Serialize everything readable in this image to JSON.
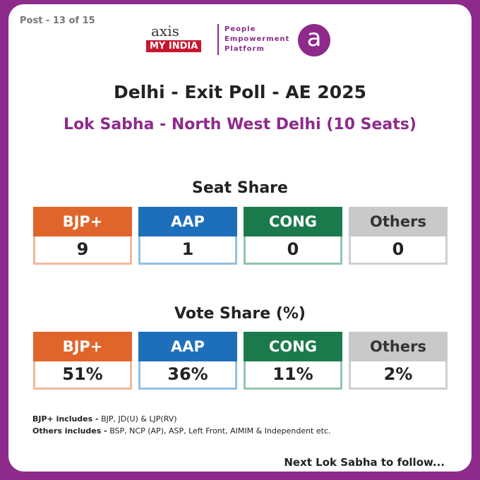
{
  "header": {
    "post": "Post - 13 of 15",
    "logo_top": "axis",
    "logo_bottom": "MY INDIA",
    "tagline": [
      "People",
      "Empowerment",
      "Platform"
    ],
    "badge": "a"
  },
  "title": "Delhi - Exit Poll - AE 2025",
  "subtitle": "Lok Sabha - North West Delhi (10 Seats)",
  "seat_share": {
    "heading": "Seat Share",
    "items": [
      {
        "party": "BJP+",
        "value": 9
      },
      {
        "party": "AAP",
        "value": 1
      },
      {
        "party": "CONG",
        "value": 0
      },
      {
        "party": "Others",
        "value": 0
      }
    ]
  },
  "vote_share": {
    "heading": "Vote Share (%)",
    "items": [
      {
        "party": "BJP+",
        "value": "51%"
      },
      {
        "party": "AAP",
        "value": "36%"
      },
      {
        "party": "CONG",
        "value": "11%"
      },
      {
        "party": "Others",
        "value": "2%"
      }
    ]
  },
  "notes": [
    {
      "label": "BJP+ includes -",
      "text": "BJP, JD(U) & LJP(RV)"
    },
    {
      "label": "Others includes -",
      "text": "BSP, NCP (AP), ASP, Left Front, AIMIM & Independent etc."
    }
  ],
  "footer": "Next Lok Sabha to follow..."
}
